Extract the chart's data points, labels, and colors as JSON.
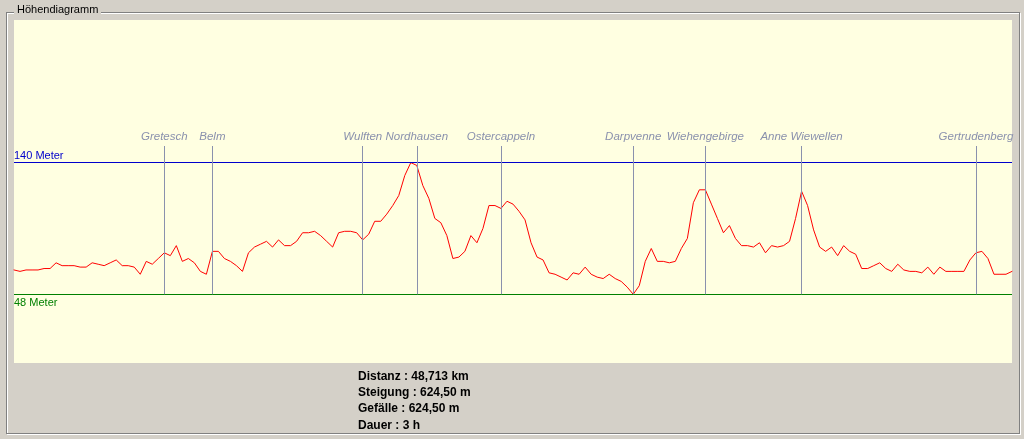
{
  "chart_data": {
    "type": "line",
    "title": "Höhendiagramm",
    "categories": [
      null,
      null,
      null,
      null,
      null,
      null,
      null,
      null,
      null,
      null,
      null,
      null,
      null,
      null,
      null,
      null,
      null,
      null,
      null,
      null,
      null,
      null,
      null,
      null,
      null,
      "Gretesch",
      null,
      null,
      null,
      null,
      null,
      null,
      null,
      "Belm",
      null,
      null,
      null,
      null,
      null,
      null,
      null,
      null,
      null,
      null,
      null,
      null,
      null,
      null,
      null,
      null,
      null,
      null,
      null,
      null,
      null,
      null,
      null,
      null,
      "Wulften",
      null,
      null,
      null,
      null,
      null,
      null,
      null,
      null,
      "Nordhausen",
      null,
      null,
      null,
      null,
      null,
      null,
      null,
      null,
      null,
      null,
      null,
      null,
      null,
      "Ostercappeln",
      null,
      null,
      null,
      null,
      null,
      null,
      null,
      null,
      null,
      null,
      null,
      null,
      null,
      null,
      null,
      null,
      null,
      null,
      null,
      null,
      null,
      "Darpvenne",
      null,
      null,
      null,
      null,
      null,
      null,
      null,
      null,
      null,
      null,
      null,
      "Wiehengebirge",
      null,
      null,
      null,
      null,
      null,
      null,
      null,
      null,
      null,
      null,
      null,
      null,
      null,
      null,
      null,
      "Anne Wiewellen",
      null,
      null,
      null,
      null,
      null,
      null,
      null,
      null,
      null,
      null,
      null,
      null,
      null,
      null,
      null,
      null,
      null,
      null,
      null,
      null,
      null,
      null,
      null,
      null,
      null,
      null,
      null,
      null,
      "Gertrudenberg",
      null,
      null,
      null,
      null,
      null,
      null
    ],
    "series": [
      {
        "color": "#ff0000",
        "values": [
          65,
          64,
          65,
          65,
          65,
          66,
          66,
          70,
          68,
          68,
          68,
          67,
          67,
          70,
          69,
          68,
          70,
          72,
          68,
          68,
          67,
          62,
          71,
          69,
          73,
          77,
          75,
          82,
          71,
          73,
          70,
          64,
          62,
          78,
          78,
          73,
          71,
          68,
          64,
          77,
          81,
          83,
          85,
          81,
          86,
          82,
          82,
          85,
          91,
          91,
          92,
          89,
          85,
          81,
          91,
          92,
          92,
          91,
          86,
          90,
          99,
          99,
          104,
          110,
          117,
          131,
          140,
          138,
          124,
          115,
          101,
          98,
          89,
          73,
          74,
          78,
          89,
          84,
          94,
          110,
          110,
          108,
          113,
          111,
          106,
          100,
          84,
          74,
          72,
          63,
          62,
          60,
          58,
          63,
          62,
          67,
          62,
          60,
          59,
          62,
          59,
          57,
          53,
          48,
          54,
          71,
          80,
          71,
          71,
          70,
          71,
          80,
          87,
          112,
          121,
          121,
          111,
          101,
          91,
          96,
          87,
          82,
          82,
          81,
          84,
          77,
          82,
          81,
          82,
          85,
          101,
          120,
          110,
          93,
          81,
          78,
          81,
          75,
          82,
          78,
          76,
          66,
          66,
          68,
          70,
          66,
          64,
          69,
          65,
          64,
          64,
          63,
          67,
          62,
          67,
          64,
          64,
          64,
          64,
          72,
          77,
          78,
          73,
          62,
          62,
          62,
          64
        ]
      }
    ],
    "ylim": [
      0,
      151.6
    ],
    "ref_lines": [
      {
        "axis": "y",
        "value": 140,
        "label": "140 Meter",
        "color": "#0000cc"
      },
      {
        "axis": "y",
        "value": 48,
        "label": "48 Meter",
        "color": "#008000"
      },
      {
        "axis": "x",
        "value": "Gretesch",
        "color": "#8a91ad"
      },
      {
        "axis": "x",
        "value": "Belm",
        "color": "#8a91ad"
      },
      {
        "axis": "x",
        "value": "Wulften",
        "color": "#8a91ad"
      },
      {
        "axis": "x",
        "value": "Nordhausen",
        "color": "#8a91ad"
      },
      {
        "axis": "x",
        "value": "Ostercappeln",
        "color": "#8a91ad"
      },
      {
        "axis": "x",
        "value": "Darpvenne",
        "color": "#8a91ad"
      },
      {
        "axis": "x",
        "value": "Wiehengebirge",
        "color": "#8a91ad"
      },
      {
        "axis": "x",
        "value": "Anne Wiewellen",
        "color": "#8a91ad"
      },
      {
        "axis": "x",
        "value": "Gertrudenberg",
        "color": "#8a91ad"
      }
    ],
    "annotations": [
      "Distanz : 48,713 km",
      "Steigung : 624,50 m",
      "Gefälle : 624,50 m",
      "Dauer : 3 h"
    ],
    "tick_labels": "x"
  }
}
